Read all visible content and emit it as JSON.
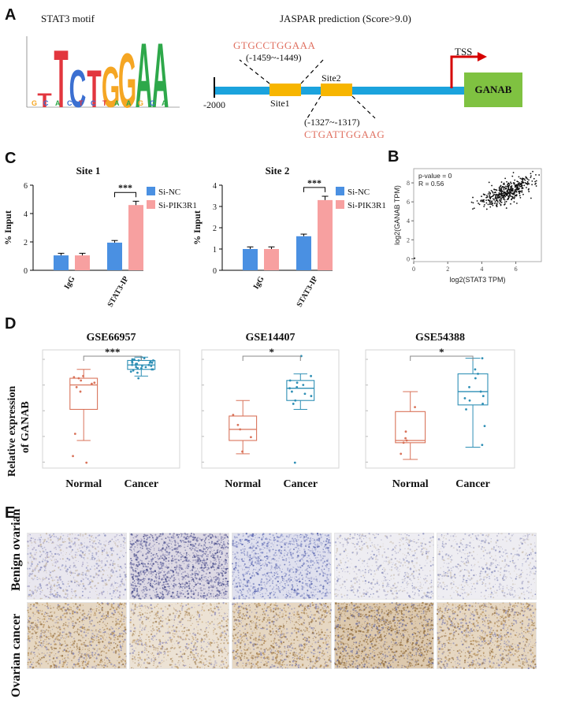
{
  "panels": {
    "A": "A",
    "B": "B",
    "C": "C",
    "D": "D",
    "E": "E"
  },
  "panelA": {
    "motif_title": "STAT3 motif",
    "motif_letters": [
      "T",
      "T",
      "C",
      "T",
      "G",
      "G",
      "A",
      "A"
    ],
    "motif_colors": {
      "T": "#e2363e",
      "C": "#3b6fd1",
      "G": "#f5a623",
      "A": "#2ea84a"
    },
    "jaspar_title": "JASPAR prediction (Score>9.0)",
    "site1_seq": "GTGCCTGGAAA",
    "site1_pos": "(-1459~-1449)",
    "site2_seq": "CTGATTGGAAG",
    "site2_pos": "(-1327~-1317)",
    "site1_label": "Site1",
    "site2_label": "Site2",
    "start_label": "-2000",
    "tss_label": "TSS",
    "gene_label": "GANAB",
    "colors": {
      "line": "#1ba3dd",
      "site": "#f7b500",
      "gene": "#7fc241",
      "seq": "#e07060",
      "tss": "#d60000"
    }
  },
  "panelC": {
    "legend": [
      "Si-NC",
      "Si-PIK3R1"
    ],
    "colors": {
      "nc": "#4a90e2",
      "si": "#f7a0a0"
    },
    "chart_data": [
      {
        "type": "bar",
        "title": "Site 1",
        "ylabel": "% Input",
        "categories": [
          "IgG",
          "STAT3-IP"
        ],
        "ylim": [
          0,
          6
        ],
        "yticks": [
          "0",
          "2",
          "4",
          "6"
        ],
        "series": [
          {
            "name": "Si-NC",
            "values": [
              1.05,
              1.95
            ]
          },
          {
            "name": "Si-PIK3R1",
            "values": [
              1.05,
              4.6
            ]
          }
        ],
        "significance": "***"
      },
      {
        "type": "bar",
        "title": "Site 2",
        "ylabel": "% Input",
        "categories": [
          "IgG",
          "STAT3-IP"
        ],
        "ylim": [
          0,
          4
        ],
        "yticks": [
          "0",
          "1",
          "2",
          "3",
          "4"
        ],
        "series": [
          {
            "name": "Si-NC",
            "values": [
              1.0,
              1.6
            ]
          },
          {
            "name": "Si-PIK3R1",
            "values": [
              1.0,
              3.3
            ]
          }
        ],
        "significance": "***"
      }
    ]
  },
  "panelB": {
    "stat_p": "p-value = 0",
    "stat_r": "R = 0.56",
    "xlabel": "log2(STAT3 TPM)",
    "ylabel": "log2(GANAB TPM)",
    "xticks": [
      "0",
      "2",
      "4",
      "6"
    ],
    "yticks": [
      "0",
      "2",
      "4",
      "6",
      "8"
    ],
    "chart_data": {
      "type": "scatter",
      "xlim": [
        0,
        7.5
      ],
      "ylim": [
        -0.3,
        9.5
      ],
      "n_points": 420,
      "center": [
        5.5,
        7.0
      ]
    }
  },
  "panelD": {
    "ylabel_line1": "Relative expression",
    "ylabel_line2": "of GANAB",
    "colors": {
      "normal": "#d9735a",
      "cancer": "#2e8fb5"
    },
    "chart_data": [
      {
        "type": "box",
        "title": "GSE66957",
        "categories": [
          "Normal",
          "Cancer"
        ],
        "significance": "***",
        "normal": {
          "q1": 0.5,
          "median": 0.72,
          "q3": 0.78,
          "whisker_low": 0.22,
          "whisker_high": 0.86,
          "points": [
            0.73,
            0.76,
            0.79,
            0.8,
            0.78,
            0.7,
            0.74,
            0.28,
            0.08,
            0.02,
            0.66
          ]
        },
        "cancer": {
          "q1": 0.86,
          "median": 0.9,
          "q3": 0.94,
          "whisker_low": 0.8,
          "whisker_high": 0.97,
          "points": [
            0.84,
            0.86,
            0.87,
            0.88,
            0.88,
            0.89,
            0.9,
            0.9,
            0.91,
            0.91,
            0.92,
            0.92,
            0.93,
            0.93,
            0.94,
            0.95,
            0.96,
            0.97,
            0.86,
            0.87,
            0.89,
            0.9,
            0.92,
            0.94,
            0.95,
            0.83,
            0.85,
            0.78
          ]
        }
      },
      {
        "type": "box",
        "title": "GSE14407",
        "categories": [
          "Normal",
          "Cancer"
        ],
        "significance": "*",
        "normal": {
          "q1": 0.22,
          "median": 0.32,
          "q3": 0.44,
          "whisker_low": 0.1,
          "whisker_high": 0.58,
          "points": [
            0.25,
            0.32,
            0.45,
            0.12,
            0.36
          ]
        },
        "cancer": {
          "q1": 0.58,
          "median": 0.69,
          "q3": 0.76,
          "whisker_low": 0.5,
          "whisker_high": 0.82,
          "points": [
            0.55,
            0.62,
            0.66,
            0.69,
            0.72,
            0.74,
            0.76,
            0.8,
            0.7,
            0.64,
            0.58,
            0.98,
            0.02
          ]
        }
      },
      {
        "type": "box",
        "title": "GSE54388",
        "categories": [
          "Normal",
          "Cancer"
        ],
        "significance": "*",
        "normal": {
          "q1": 0.2,
          "median": 0.22,
          "q3": 0.48,
          "whisker_low": 0.05,
          "whisker_high": 0.66,
          "points": [
            0.22,
            0.24,
            0.3,
            0.52,
            0.2,
            0.1
          ]
        },
        "cancer": {
          "q1": 0.54,
          "median": 0.66,
          "q3": 0.82,
          "whisker_low": 0.16,
          "whisker_high": 0.96,
          "points": [
            0.55,
            0.6,
            0.66,
            0.7,
            0.78,
            0.82,
            0.86,
            0.96,
            0.5,
            0.35,
            0.58,
            0.62,
            0.18
          ]
        }
      }
    ]
  },
  "panelE": {
    "row1_label": "Benign ovarian",
    "row2_label": "Ovarian cancer"
  }
}
